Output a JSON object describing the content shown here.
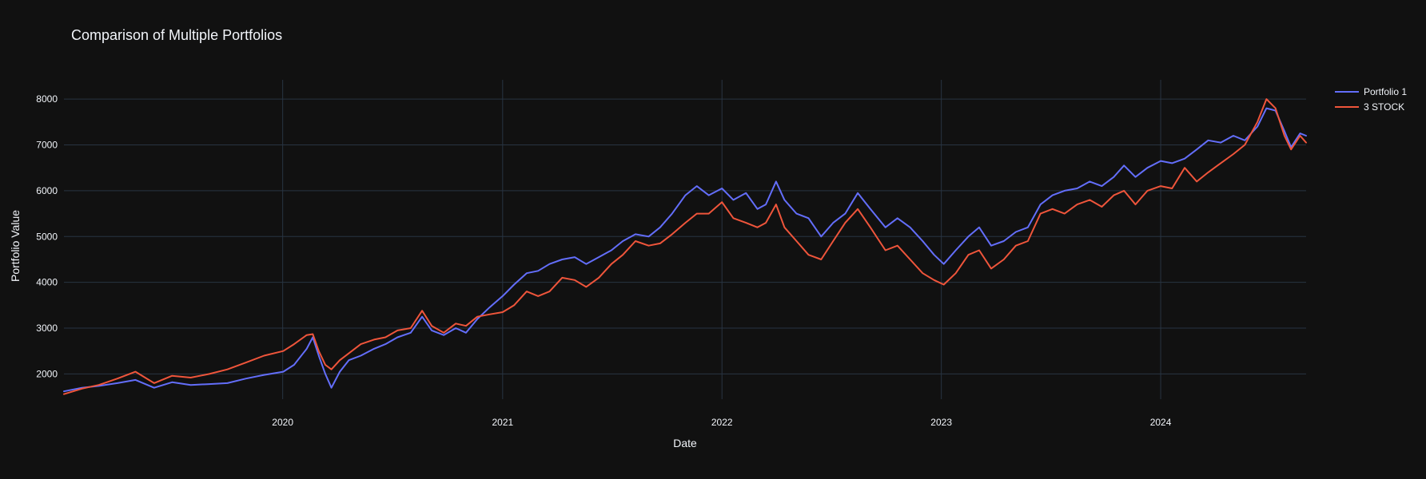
{
  "chart_data": {
    "type": "line",
    "title": "Comparison of Multiple Portfolios",
    "xlabel": "Date",
    "ylabel": "Portfolio Value",
    "x_tick_labels": [
      "2020",
      "2021",
      "2022",
      "2023",
      "2024"
    ],
    "y_tick_labels": [
      "2000",
      "3000",
      "4000",
      "5000",
      "6000",
      "7000",
      "8000"
    ],
    "x_range": [
      "2019-01-02",
      "2024-08-30"
    ],
    "ylim": [
      1450,
      8420
    ],
    "grid": true,
    "legend_position": "top-right",
    "series": [
      {
        "name": "Portfolio 1",
        "color": "#636efa",
        "points": [
          [
            "2019-01-02",
            1620
          ],
          [
            "2019-02-01",
            1700
          ],
          [
            "2019-03-01",
            1740
          ],
          [
            "2019-04-01",
            1800
          ],
          [
            "2019-05-01",
            1870
          ],
          [
            "2019-06-01",
            1700
          ],
          [
            "2019-07-01",
            1820
          ],
          [
            "2019-08-01",
            1760
          ],
          [
            "2019-09-01",
            1780
          ],
          [
            "2019-10-01",
            1800
          ],
          [
            "2019-11-01",
            1900
          ],
          [
            "2019-12-01",
            1980
          ],
          [
            "2020-01-02",
            2050
          ],
          [
            "2020-01-20",
            2200
          ],
          [
            "2020-02-10",
            2550
          ],
          [
            "2020-02-20",
            2800
          ],
          [
            "2020-03-01",
            2400
          ],
          [
            "2020-03-12",
            2000
          ],
          [
            "2020-03-22",
            1700
          ],
          [
            "2020-04-05",
            2050
          ],
          [
            "2020-04-20",
            2300
          ],
          [
            "2020-05-10",
            2400
          ],
          [
            "2020-06-01",
            2550
          ],
          [
            "2020-06-20",
            2650
          ],
          [
            "2020-07-10",
            2800
          ],
          [
            "2020-08-01",
            2900
          ],
          [
            "2020-08-20",
            3250
          ],
          [
            "2020-09-05",
            2950
          ],
          [
            "2020-09-25",
            2850
          ],
          [
            "2020-10-15",
            3000
          ],
          [
            "2020-11-01",
            2900
          ],
          [
            "2020-11-20",
            3200
          ],
          [
            "2020-12-10",
            3450
          ],
          [
            "2021-01-01",
            3700
          ],
          [
            "2021-01-20",
            3950
          ],
          [
            "2021-02-10",
            4200
          ],
          [
            "2021-03-01",
            4250
          ],
          [
            "2021-03-20",
            4400
          ],
          [
            "2021-04-10",
            4500
          ],
          [
            "2021-05-01",
            4550
          ],
          [
            "2021-05-20",
            4400
          ],
          [
            "2021-06-10",
            4550
          ],
          [
            "2021-07-01",
            4700
          ],
          [
            "2021-07-20",
            4900
          ],
          [
            "2021-08-10",
            5050
          ],
          [
            "2021-09-01",
            5000
          ],
          [
            "2021-09-20",
            5200
          ],
          [
            "2021-10-10",
            5500
          ],
          [
            "2021-11-01",
            5900
          ],
          [
            "2021-11-20",
            6100
          ],
          [
            "2021-12-10",
            5900
          ],
          [
            "2022-01-01",
            6050
          ],
          [
            "2022-01-20",
            5800
          ],
          [
            "2022-02-10",
            5950
          ],
          [
            "2022-03-01",
            5600
          ],
          [
            "2022-03-15",
            5700
          ],
          [
            "2022-04-01",
            6200
          ],
          [
            "2022-04-15",
            5800
          ],
          [
            "2022-05-05",
            5500
          ],
          [
            "2022-05-25",
            5400
          ],
          [
            "2022-06-15",
            5000
          ],
          [
            "2022-07-05",
            5300
          ],
          [
            "2022-07-25",
            5500
          ],
          [
            "2022-08-15",
            5950
          ],
          [
            "2022-09-05",
            5600
          ],
          [
            "2022-09-30",
            5200
          ],
          [
            "2022-10-20",
            5400
          ],
          [
            "2022-11-10",
            5200
          ],
          [
            "2022-12-01",
            4900
          ],
          [
            "2022-12-20",
            4600
          ],
          [
            "2023-01-05",
            4400
          ],
          [
            "2023-01-25",
            4700
          ],
          [
            "2023-02-15",
            5000
          ],
          [
            "2023-03-05",
            5200
          ],
          [
            "2023-03-25",
            4800
          ],
          [
            "2023-04-15",
            4900
          ],
          [
            "2023-05-05",
            5100
          ],
          [
            "2023-05-25",
            5200
          ],
          [
            "2023-06-15",
            5700
          ],
          [
            "2023-07-05",
            5900
          ],
          [
            "2023-07-25",
            6000
          ],
          [
            "2023-08-15",
            6050
          ],
          [
            "2023-09-05",
            6200
          ],
          [
            "2023-09-25",
            6100
          ],
          [
            "2023-10-15",
            6300
          ],
          [
            "2023-11-01",
            6550
          ],
          [
            "2023-11-20",
            6300
          ],
          [
            "2023-12-10",
            6500
          ],
          [
            "2024-01-01",
            6650
          ],
          [
            "2024-01-20",
            6600
          ],
          [
            "2024-02-10",
            6700
          ],
          [
            "2024-03-01",
            6900
          ],
          [
            "2024-03-20",
            7100
          ],
          [
            "2024-04-10",
            7050
          ],
          [
            "2024-05-01",
            7200
          ],
          [
            "2024-05-20",
            7100
          ],
          [
            "2024-06-10",
            7400
          ],
          [
            "2024-06-25",
            7800
          ],
          [
            "2024-07-10",
            7750
          ],
          [
            "2024-07-25",
            7300
          ],
          [
            "2024-08-05",
            6950
          ],
          [
            "2024-08-20",
            7250
          ],
          [
            "2024-08-30",
            7200
          ]
        ]
      },
      {
        "name": "3 STOCK",
        "color": "#ef553b",
        "points": [
          [
            "2019-01-02",
            1560
          ],
          [
            "2019-02-01",
            1680
          ],
          [
            "2019-03-01",
            1760
          ],
          [
            "2019-04-01",
            1900
          ],
          [
            "2019-05-01",
            2050
          ],
          [
            "2019-06-01",
            1800
          ],
          [
            "2019-07-01",
            1960
          ],
          [
            "2019-08-01",
            1920
          ],
          [
            "2019-09-01",
            2000
          ],
          [
            "2019-10-01",
            2100
          ],
          [
            "2019-11-01",
            2250
          ],
          [
            "2019-12-01",
            2400
          ],
          [
            "2020-01-02",
            2500
          ],
          [
            "2020-01-20",
            2650
          ],
          [
            "2020-02-10",
            2850
          ],
          [
            "2020-02-20",
            2870
          ],
          [
            "2020-03-01",
            2500
          ],
          [
            "2020-03-12",
            2200
          ],
          [
            "2020-03-22",
            2100
          ],
          [
            "2020-04-05",
            2300
          ],
          [
            "2020-04-20",
            2450
          ],
          [
            "2020-05-10",
            2650
          ],
          [
            "2020-06-01",
            2750
          ],
          [
            "2020-06-20",
            2800
          ],
          [
            "2020-07-10",
            2950
          ],
          [
            "2020-08-01",
            3000
          ],
          [
            "2020-08-20",
            3380
          ],
          [
            "2020-09-05",
            3050
          ],
          [
            "2020-09-25",
            2900
          ],
          [
            "2020-10-15",
            3100
          ],
          [
            "2020-11-01",
            3050
          ],
          [
            "2020-11-20",
            3250
          ],
          [
            "2020-12-10",
            3300
          ],
          [
            "2021-01-01",
            3350
          ],
          [
            "2021-01-20",
            3500
          ],
          [
            "2021-02-10",
            3800
          ],
          [
            "2021-03-01",
            3700
          ],
          [
            "2021-03-20",
            3800
          ],
          [
            "2021-04-10",
            4100
          ],
          [
            "2021-05-01",
            4050
          ],
          [
            "2021-05-20",
            3900
          ],
          [
            "2021-06-10",
            4100
          ],
          [
            "2021-07-01",
            4400
          ],
          [
            "2021-07-20",
            4600
          ],
          [
            "2021-08-10",
            4900
          ],
          [
            "2021-09-01",
            4800
          ],
          [
            "2021-09-20",
            4850
          ],
          [
            "2021-10-10",
            5050
          ],
          [
            "2021-11-01",
            5300
          ],
          [
            "2021-11-20",
            5500
          ],
          [
            "2021-12-10",
            5500
          ],
          [
            "2022-01-01",
            5750
          ],
          [
            "2022-01-20",
            5400
          ],
          [
            "2022-02-10",
            5300
          ],
          [
            "2022-03-01",
            5200
          ],
          [
            "2022-03-15",
            5300
          ],
          [
            "2022-04-01",
            5700
          ],
          [
            "2022-04-15",
            5200
          ],
          [
            "2022-05-05",
            4900
          ],
          [
            "2022-05-25",
            4600
          ],
          [
            "2022-06-15",
            4500
          ],
          [
            "2022-07-05",
            4900
          ],
          [
            "2022-07-25",
            5300
          ],
          [
            "2022-08-15",
            5600
          ],
          [
            "2022-09-05",
            5200
          ],
          [
            "2022-09-30",
            4700
          ],
          [
            "2022-10-20",
            4800
          ],
          [
            "2022-11-10",
            4500
          ],
          [
            "2022-12-01",
            4200
          ],
          [
            "2022-12-20",
            4050
          ],
          [
            "2023-01-05",
            3950
          ],
          [
            "2023-01-25",
            4200
          ],
          [
            "2023-02-15",
            4600
          ],
          [
            "2023-03-05",
            4700
          ],
          [
            "2023-03-25",
            4300
          ],
          [
            "2023-04-15",
            4500
          ],
          [
            "2023-05-05",
            4800
          ],
          [
            "2023-05-25",
            4900
          ],
          [
            "2023-06-15",
            5500
          ],
          [
            "2023-07-05",
            5600
          ],
          [
            "2023-07-25",
            5500
          ],
          [
            "2023-08-15",
            5700
          ],
          [
            "2023-09-05",
            5800
          ],
          [
            "2023-09-25",
            5650
          ],
          [
            "2023-10-15",
            5900
          ],
          [
            "2023-11-01",
            6000
          ],
          [
            "2023-11-20",
            5700
          ],
          [
            "2023-12-10",
            6000
          ],
          [
            "2024-01-01",
            6100
          ],
          [
            "2024-01-20",
            6050
          ],
          [
            "2024-02-10",
            6500
          ],
          [
            "2024-03-01",
            6200
          ],
          [
            "2024-03-20",
            6400
          ],
          [
            "2024-04-10",
            6600
          ],
          [
            "2024-05-01",
            6800
          ],
          [
            "2024-05-20",
            7000
          ],
          [
            "2024-06-10",
            7500
          ],
          [
            "2024-06-25",
            8000
          ],
          [
            "2024-07-10",
            7800
          ],
          [
            "2024-07-25",
            7200
          ],
          [
            "2024-08-05",
            6900
          ],
          [
            "2024-08-20",
            7200
          ],
          [
            "2024-08-30",
            7050
          ]
        ]
      }
    ]
  }
}
